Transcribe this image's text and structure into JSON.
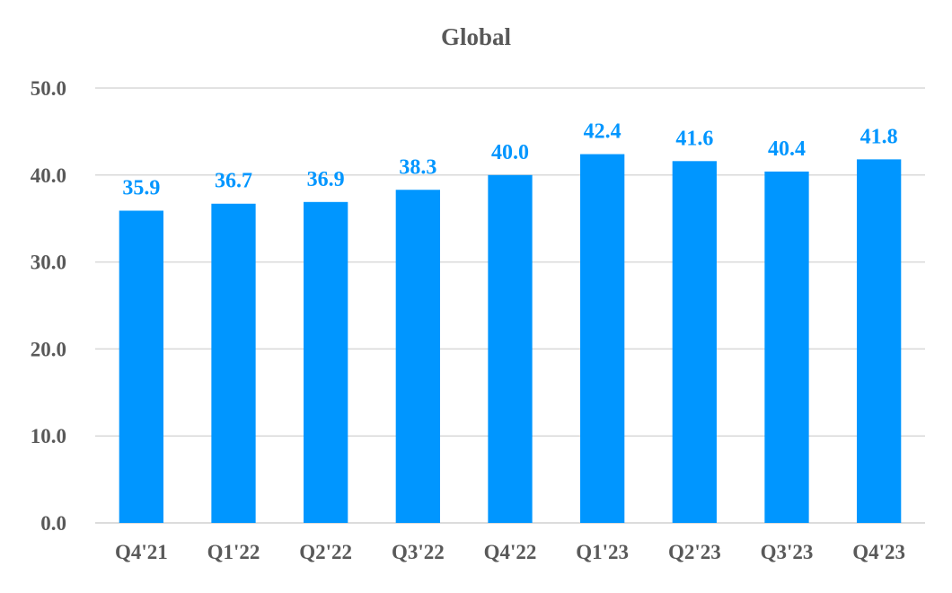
{
  "chart_data": {
    "type": "bar",
    "title": "Global",
    "categories": [
      "Q4'21",
      "Q1'22",
      "Q2'22",
      "Q3'22",
      "Q4'22",
      "Q1'23",
      "Q2'23",
      "Q3'23",
      "Q4'23"
    ],
    "series": [
      {
        "values": [
          35.9,
          36.7,
          36.9,
          38.3,
          40.0,
          42.4,
          41.6,
          40.4,
          41.8
        ]
      }
    ],
    "data_labels": [
      "35.9",
      "36.7",
      "36.9",
      "38.3",
      "40.0",
      "42.4",
      "41.6",
      "40.4",
      "41.8"
    ],
    "y_ticks": [
      "0.0",
      "10.0",
      "20.0",
      "30.0",
      "40.0",
      "50.0"
    ],
    "ylim": [
      0,
      50
    ],
    "grid": true,
    "legend": "none",
    "colors": {
      "bar": "#0096FF",
      "label": "#0096FF",
      "text": "#595959",
      "grid": "#D9D9D9"
    }
  }
}
